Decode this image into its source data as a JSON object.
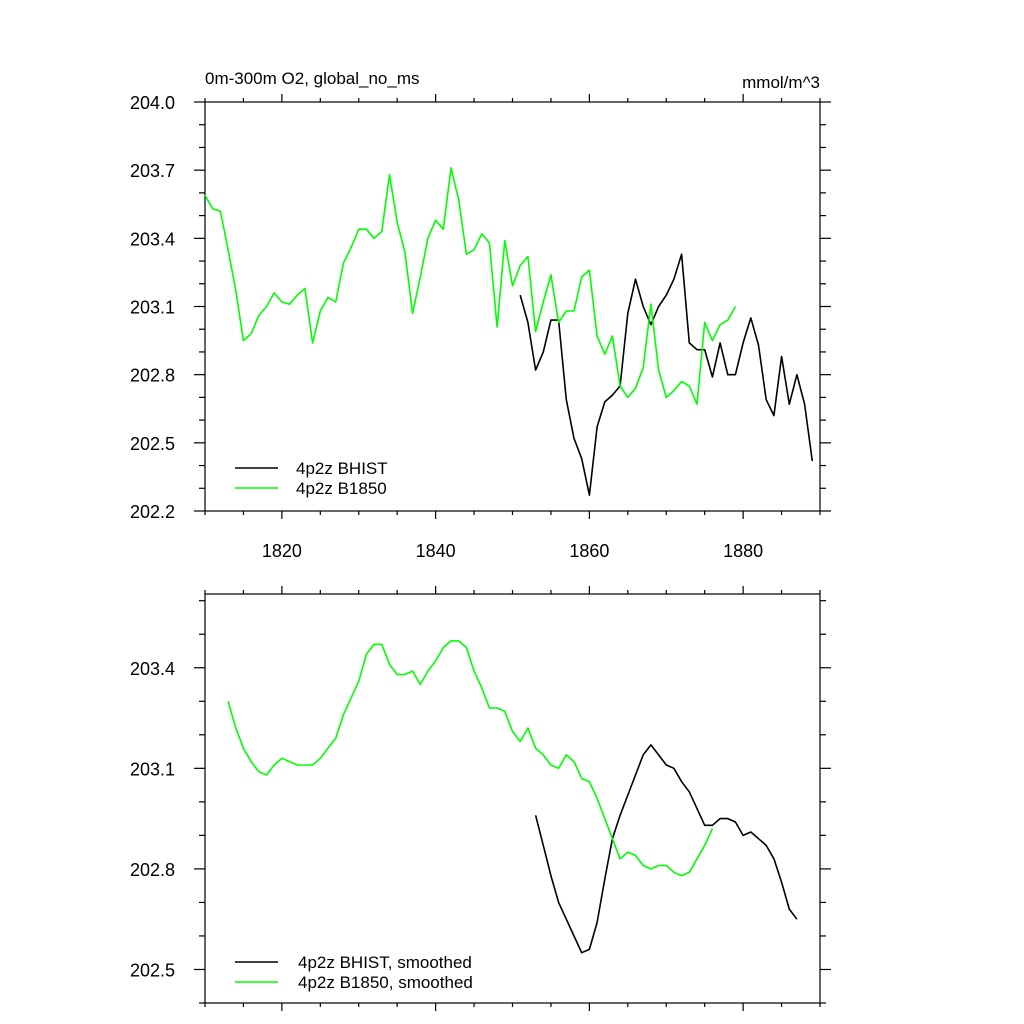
{
  "chart_data": [
    {
      "type": "line",
      "title": "0m-300m O2, global_no_ms",
      "units": "mmol/m^3",
      "xlim": [
        1810,
        1890
      ],
      "ylim": [
        202.2,
        204.0
      ],
      "x_ticks": [
        1820,
        1840,
        1860,
        1880
      ],
      "y_ticks": [
        "202.2",
        "202.5",
        "202.8",
        "203.1",
        "203.4",
        "203.7",
        "204.0"
      ],
      "grid": false,
      "legend": "bottom-left",
      "series": [
        {
          "name": "4p2z BHIST",
          "color": "#000000",
          "x": [
            1851,
            1852,
            1853,
            1854,
            1855,
            1856,
            1857,
            1858,
            1859,
            1860,
            1861,
            1862,
            1863,
            1864,
            1865,
            1866,
            1867,
            1868,
            1869,
            1870,
            1871,
            1872,
            1873,
            1874,
            1875,
            1876,
            1877,
            1878,
            1879,
            1880,
            1881,
            1882,
            1883,
            1884,
            1885,
            1886,
            1887,
            1888,
            1889
          ],
          "y": [
            203.15,
            203.03,
            202.82,
            202.9,
            203.04,
            203.04,
            202.69,
            202.52,
            202.43,
            202.27,
            202.57,
            202.68,
            202.71,
            202.75,
            203.07,
            203.22,
            203.1,
            203.02,
            203.1,
            203.15,
            203.22,
            203.33,
            202.94,
            202.91,
            202.91,
            202.79,
            202.94,
            202.8,
            202.8,
            202.94,
            203.05,
            202.93,
            202.69,
            202.62,
            202.88,
            202.67,
            202.8,
            202.67,
            202.42
          ]
        },
        {
          "name": "4p2z B1850",
          "color": "#00ff00",
          "x": [
            1810,
            1811,
            1812,
            1813,
            1814,
            1815,
            1816,
            1817,
            1818,
            1819,
            1820,
            1821,
            1822,
            1823,
            1824,
            1825,
            1826,
            1827,
            1828,
            1829,
            1830,
            1831,
            1832,
            1833,
            1834,
            1835,
            1836,
            1837,
            1838,
            1839,
            1840,
            1841,
            1842,
            1843,
            1844,
            1845,
            1846,
            1847,
            1848,
            1849,
            1850,
            1851,
            1852,
            1853,
            1854,
            1855,
            1856,
            1857,
            1858,
            1859,
            1860,
            1861,
            1862,
            1863,
            1864,
            1865,
            1866,
            1867,
            1868,
            1869,
            1870,
            1871,
            1872,
            1873,
            1874,
            1875,
            1876,
            1877,
            1878,
            1879
          ],
          "y": [
            203.59,
            203.53,
            203.52,
            203.35,
            203.17,
            202.95,
            202.98,
            203.06,
            203.1,
            203.16,
            203.12,
            203.11,
            203.15,
            203.18,
            202.94,
            203.08,
            203.14,
            203.12,
            203.29,
            203.36,
            203.44,
            203.44,
            203.4,
            203.43,
            203.68,
            203.47,
            203.34,
            203.07,
            203.23,
            203.4,
            203.48,
            203.44,
            203.71,
            203.57,
            203.33,
            203.35,
            203.42,
            203.38,
            203.01,
            203.39,
            203.19,
            203.28,
            203.32,
            202.99,
            203.12,
            203.24,
            203.03,
            203.08,
            203.08,
            203.23,
            203.26,
            202.97,
            202.89,
            202.97,
            202.75,
            202.7,
            202.74,
            202.83,
            203.11,
            202.82,
            202.7,
            202.73,
            202.77,
            202.75,
            202.67,
            203.03,
            202.95,
            203.02,
            203.04,
            203.1
          ]
        }
      ]
    },
    {
      "type": "line",
      "title": "",
      "units": "",
      "xlim": [
        1810,
        1890
      ],
      "ylim": [
        202.4,
        203.62
      ],
      "x_ticks": [
        1820,
        1840,
        1860,
        1880
      ],
      "y_ticks": [
        "202.5",
        "202.8",
        "203.1",
        "203.4"
      ],
      "grid": false,
      "legend": "bottom-left",
      "series": [
        {
          "name": "4p2z BHIST, smoothed",
          "color": "#000000",
          "x": [
            1853,
            1854,
            1855,
            1856,
            1857,
            1858,
            1859,
            1860,
            1861,
            1862,
            1863,
            1864,
            1865,
            1866,
            1867,
            1868,
            1869,
            1870,
            1871,
            1872,
            1873,
            1874,
            1875,
            1876,
            1877,
            1878,
            1879,
            1880,
            1881,
            1882,
            1883,
            1884,
            1885,
            1886,
            1887
          ],
          "y": [
            202.96,
            202.87,
            202.78,
            202.7,
            202.65,
            202.6,
            202.55,
            202.56,
            202.64,
            202.77,
            202.89,
            202.96,
            203.02,
            203.08,
            203.14,
            203.17,
            203.14,
            203.11,
            203.1,
            203.06,
            203.03,
            202.98,
            202.93,
            202.93,
            202.95,
            202.95,
            202.94,
            202.9,
            202.91,
            202.89,
            202.87,
            202.83,
            202.76,
            202.68,
            202.65
          ]
        },
        {
          "name": "4p2z B1850, smoothed",
          "color": "#00ff00",
          "x": [
            1813,
            1814,
            1815,
            1816,
            1817,
            1818,
            1819,
            1820,
            1821,
            1822,
            1823,
            1824,
            1825,
            1826,
            1827,
            1828,
            1829,
            1830,
            1831,
            1832,
            1833,
            1834,
            1835,
            1836,
            1837,
            1838,
            1839,
            1840,
            1841,
            1842,
            1843,
            1844,
            1845,
            1846,
            1847,
            1848,
            1849,
            1850,
            1851,
            1852,
            1853,
            1854,
            1855,
            1856,
            1857,
            1858,
            1859,
            1860,
            1861,
            1862,
            1863,
            1864,
            1865,
            1866,
            1867,
            1868,
            1869,
            1870,
            1871,
            1872,
            1873,
            1874,
            1875,
            1876
          ],
          "y": [
            203.3,
            203.22,
            203.16,
            203.12,
            203.09,
            203.08,
            203.11,
            203.13,
            203.12,
            203.11,
            203.11,
            203.11,
            203.13,
            203.16,
            203.19,
            203.26,
            203.31,
            203.36,
            203.44,
            203.47,
            203.47,
            203.41,
            203.38,
            203.38,
            203.39,
            203.35,
            203.39,
            203.42,
            203.46,
            203.48,
            203.48,
            203.46,
            203.39,
            203.34,
            203.28,
            203.28,
            203.27,
            203.21,
            203.18,
            203.22,
            203.16,
            203.14,
            203.11,
            203.1,
            203.14,
            203.12,
            203.07,
            203.06,
            203.01,
            202.95,
            202.89,
            202.83,
            202.85,
            202.84,
            202.81,
            202.8,
            202.81,
            202.81,
            202.79,
            202.78,
            202.79,
            202.83,
            202.87,
            202.92
          ]
        }
      ]
    }
  ]
}
